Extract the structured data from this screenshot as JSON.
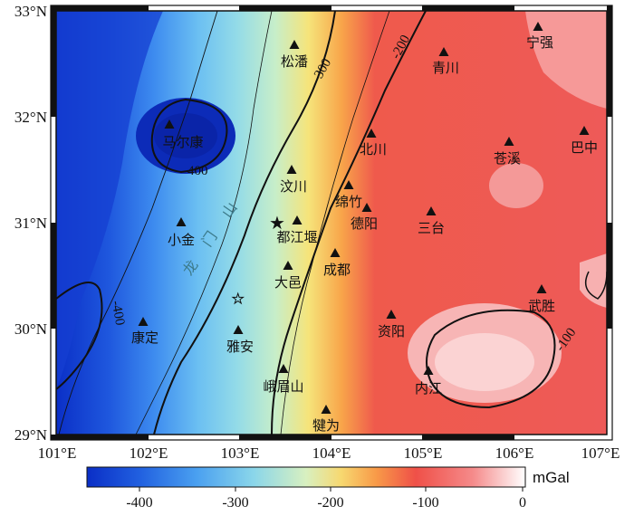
{
  "map": {
    "x_axis_labels": [
      "101°E",
      "102°E",
      "103°E",
      "104°E",
      "105°E",
      "106°E",
      "107°E"
    ],
    "y_axis_labels": [
      "33°N",
      "32°N",
      "31°N",
      "30°N",
      "29°N"
    ],
    "contour_labels": [
      "-400",
      "-300",
      "-200",
      "-400",
      "-100"
    ],
    "mountain_label": [
      "龙",
      "门",
      "山"
    ],
    "cities": [
      "松潘",
      "青川",
      "宁强",
      "马尔康",
      "北川",
      "苍溪",
      "巴中",
      "汶川",
      "绵竹",
      "德阳",
      "小金",
      "都江堰",
      "三台",
      "成都",
      "大邑",
      "康定",
      "雅安",
      "资阳",
      "武胜",
      "峨眉山",
      "内江",
      "犍为"
    ],
    "colorbar": {
      "ticks": [
        "-400",
        "-300",
        "-200",
        "-100",
        "0"
      ],
      "unit": "mGal"
    },
    "colors": {
      "low": "#0a2fc8",
      "mid": "#f2e070",
      "high": "#ef5050",
      "highest": "#fde8e8"
    }
  }
}
